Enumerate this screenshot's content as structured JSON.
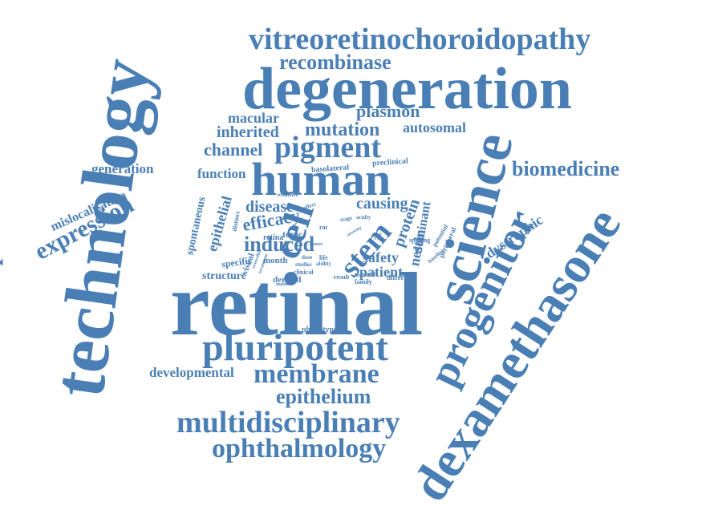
{
  "style": {
    "word_color": "#4a7fb5",
    "background": "#ffffff"
  },
  "words": [
    {
      "text": "retinal"
    },
    {
      "text": "technology"
    },
    {
      "text": "degeneration"
    },
    {
      "text": "science"
    },
    {
      "text": "dexamethasone"
    },
    {
      "text": "progenitor"
    },
    {
      "text": "human"
    },
    {
      "text": "vitreoretinochoroidopathy"
    },
    {
      "text": "pluripotent"
    },
    {
      "text": "cell"
    },
    {
      "text": "multidisciplinary"
    },
    {
      "text": "ophthalmology"
    },
    {
      "text": "membrane"
    },
    {
      "text": "pigment"
    },
    {
      "text": "transplantation"
    },
    {
      "text": "recombinase"
    },
    {
      "text": "epithelium"
    },
    {
      "text": "biomedicine"
    },
    {
      "text": "expression"
    },
    {
      "text": "stem"
    },
    {
      "text": "mutation"
    },
    {
      "text": "plasmon"
    },
    {
      "text": "inherited"
    },
    {
      "text": "macular"
    },
    {
      "text": "channel"
    },
    {
      "text": "autosomal"
    },
    {
      "text": "induced"
    },
    {
      "text": "efficacy"
    },
    {
      "text": "disease"
    },
    {
      "text": "function"
    },
    {
      "text": "generation"
    },
    {
      "text": "mislocalisation"
    },
    {
      "text": "developmental"
    },
    {
      "text": "dystrophic"
    },
    {
      "text": "causing"
    },
    {
      "text": "safety"
    },
    {
      "text": "patient"
    },
    {
      "text": "protein"
    },
    {
      "text": "nestin"
    },
    {
      "text": "dominant"
    },
    {
      "text": "epithelial"
    },
    {
      "text": "spontaneous"
    },
    {
      "text": "structure"
    },
    {
      "text": "specific"
    },
    {
      "text": "visual"
    },
    {
      "text": "month"
    },
    {
      "text": "derived"
    },
    {
      "text": "topic"
    },
    {
      "text": "retina"
    },
    {
      "text": "basolateral"
    },
    {
      "text": "preclinical"
    },
    {
      "text": "phenotype"
    },
    {
      "text": "peripheral"
    },
    {
      "text": "different"
    },
    {
      "text": "potential"
    },
    {
      "text": "splicing"
    },
    {
      "text": "baseline"
    },
    {
      "text": "family"
    },
    {
      "text": "method"
    },
    {
      "text": "result"
    },
    {
      "text": "clinical"
    },
    {
      "text": "studies"
    },
    {
      "text": "ability"
    },
    {
      "text": "life"
    },
    {
      "text": "dose"
    },
    {
      "text": "distinct"
    },
    {
      "text": "evidence"
    },
    {
      "text": "effect"
    },
    {
      "text": "stage"
    },
    {
      "text": "acuity"
    },
    {
      "text": "rat"
    },
    {
      "text": "type"
    },
    {
      "text": "severity"
    },
    {
      "text": "mouse"
    },
    {
      "text": "reversible"
    },
    {
      "text": "treatment"
    },
    {
      "text": "mature"
    }
  ]
}
